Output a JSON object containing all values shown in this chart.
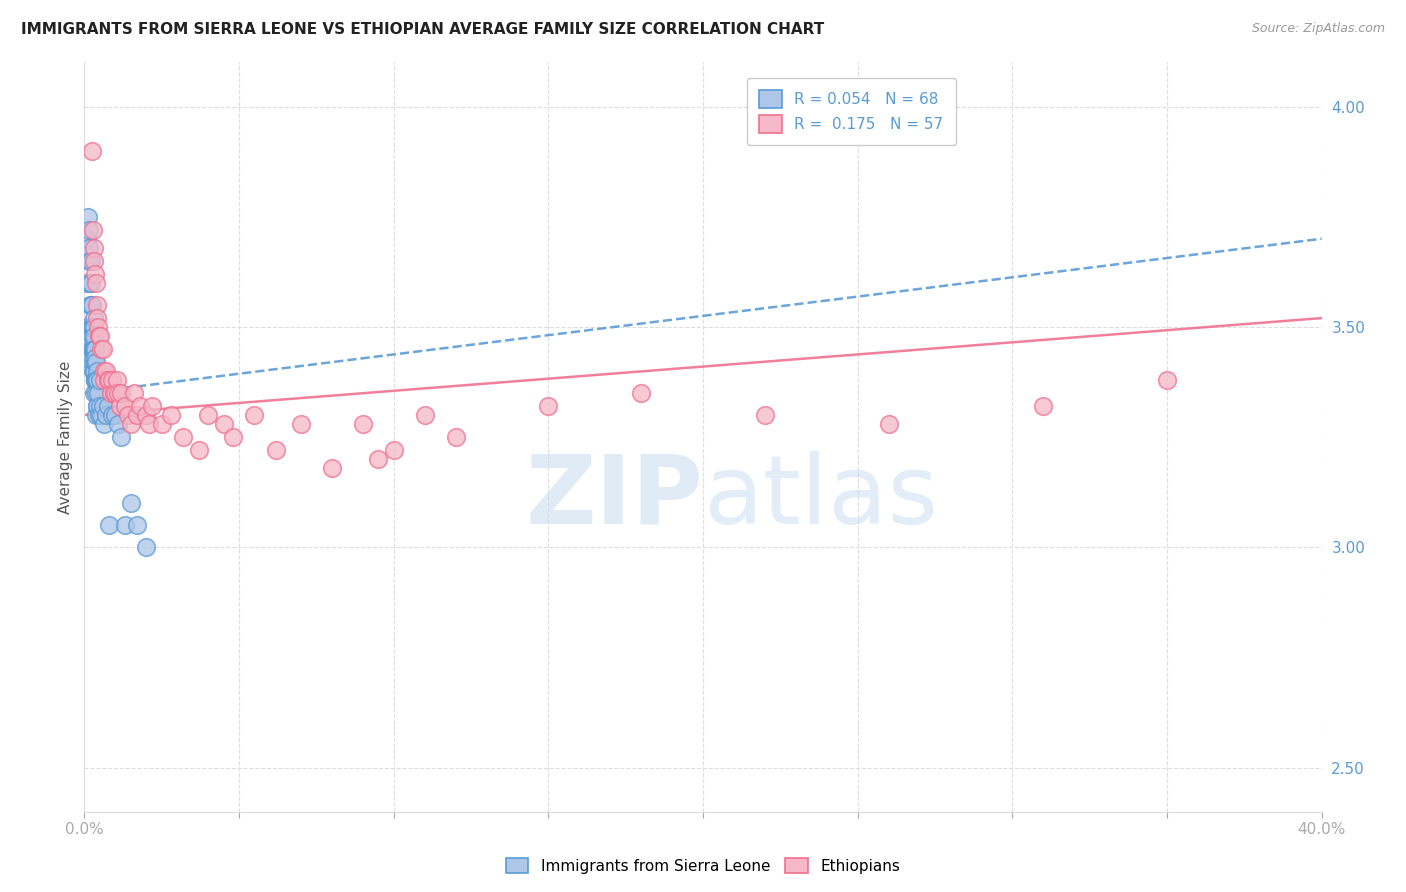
{
  "title": "IMMIGRANTS FROM SIERRA LEONE VS ETHIOPIAN AVERAGE FAMILY SIZE CORRELATION CHART",
  "source": "Source: ZipAtlas.com",
  "ylabel": "Average Family Size",
  "legend_entry_1": "R = 0.054   N = 68",
  "legend_entry_2": "R =  0.175   N = 57",
  "legend_labels_bottom": [
    "Immigrants from Sierra Leone",
    "Ethiopians"
  ],
  "blue_color": "#5b9bd5",
  "pink_color": "#f07090",
  "blue_scatter_fill": "#aec6e8",
  "pink_scatter_fill": "#f4b8c8",
  "blue_line_color": "#5b9bd5",
  "pink_line_color": "#f07090",
  "background": "#ffffff",
  "grid_color": "#dddddd",
  "tick_color": "#aaaaaa",
  "label_color": "#555555",
  "title_color": "#222222",
  "watermark_color_zip": "#c8dcf0",
  "watermark_color_atlas": "#c0d8ee",
  "sierra_leone_x": [
    0.0008,
    0.001,
    0.001,
    0.0012,
    0.0015,
    0.0015,
    0.0016,
    0.0018,
    0.0018,
    0.002,
    0.002,
    0.0022,
    0.0022,
    0.0022,
    0.0024,
    0.0024,
    0.0025,
    0.0025,
    0.0026,
    0.0026,
    0.0028,
    0.0028,
    0.0028,
    0.003,
    0.003,
    0.003,
    0.003,
    0.003,
    0.003,
    0.003,
    0.0032,
    0.0032,
    0.0032,
    0.0034,
    0.0034,
    0.0034,
    0.0035,
    0.0035,
    0.0035,
    0.0036,
    0.0036,
    0.0038,
    0.0038,
    0.0038,
    0.0038,
    0.004,
    0.004,
    0.004,
    0.0042,
    0.0042,
    0.0045,
    0.0048,
    0.005,
    0.0052,
    0.0055,
    0.006,
    0.0065,
    0.007,
    0.0075,
    0.008,
    0.009,
    0.01,
    0.011,
    0.012,
    0.013,
    0.015,
    0.017,
    0.02
  ],
  "sierra_leone_y": [
    3.5,
    3.7,
    3.6,
    3.75,
    3.72,
    3.68,
    3.65,
    3.6,
    3.55,
    3.65,
    3.6,
    3.55,
    3.5,
    3.45,
    3.55,
    3.5,
    3.5,
    3.45,
    3.48,
    3.42,
    3.5,
    3.45,
    3.4,
    3.52,
    3.5,
    3.47,
    3.45,
    3.42,
    3.4,
    3.35,
    3.48,
    3.45,
    3.4,
    3.45,
    3.42,
    3.38,
    3.45,
    3.42,
    3.38,
    3.43,
    3.38,
    3.42,
    3.38,
    3.35,
    3.3,
    3.4,
    3.38,
    3.32,
    3.38,
    3.32,
    3.35,
    3.3,
    3.38,
    3.32,
    3.3,
    3.32,
    3.28,
    3.3,
    3.32,
    3.05,
    3.3,
    3.3,
    3.28,
    3.25,
    3.05,
    3.1,
    3.05,
    3.0
  ],
  "ethiopian_x": [
    0.0025,
    0.0028,
    0.003,
    0.0032,
    0.0035,
    0.0038,
    0.004,
    0.0042,
    0.0045,
    0.0048,
    0.005,
    0.0055,
    0.006,
    0.0065,
    0.0065,
    0.007,
    0.0075,
    0.008,
    0.0085,
    0.009,
    0.0095,
    0.01,
    0.0105,
    0.011,
    0.0115,
    0.012,
    0.013,
    0.014,
    0.015,
    0.016,
    0.017,
    0.018,
    0.02,
    0.021,
    0.022,
    0.025,
    0.028,
    0.032,
    0.037,
    0.04,
    0.045,
    0.048,
    0.055,
    0.062,
    0.07,
    0.08,
    0.09,
    0.095,
    0.1,
    0.11,
    0.12,
    0.15,
    0.18,
    0.22,
    0.26,
    0.31,
    0.35
  ],
  "ethiopian_y": [
    3.9,
    3.72,
    3.68,
    3.65,
    3.62,
    3.6,
    3.55,
    3.52,
    3.5,
    3.48,
    3.48,
    3.45,
    3.45,
    3.4,
    3.38,
    3.4,
    3.38,
    3.38,
    3.35,
    3.38,
    3.35,
    3.35,
    3.38,
    3.35,
    3.32,
    3.35,
    3.32,
    3.3,
    3.28,
    3.35,
    3.3,
    3.32,
    3.3,
    3.28,
    3.32,
    3.28,
    3.3,
    3.25,
    3.22,
    3.3,
    3.28,
    3.25,
    3.3,
    3.22,
    3.28,
    3.18,
    3.28,
    3.2,
    3.22,
    3.3,
    3.25,
    3.32,
    3.35,
    3.3,
    3.28,
    3.32,
    3.38
  ],
  "xmin": 0.0,
  "xmax": 0.4,
  "ymin": 2.4,
  "ymax": 4.1,
  "sl_trend_x0": 0.0,
  "sl_trend_y0": 3.35,
  "sl_trend_x1": 0.4,
  "sl_trend_y1": 3.7,
  "eth_trend_x0": 0.0,
  "eth_trend_y0": 3.3,
  "eth_trend_x1": 0.4,
  "eth_trend_y1": 3.52
}
